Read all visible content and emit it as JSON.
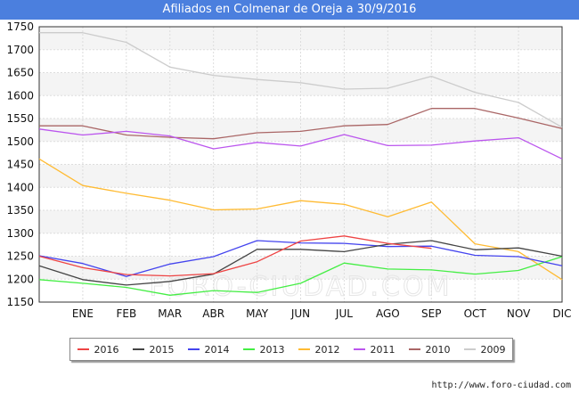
{
  "title": "Afiliados en Colmenar de Oreja a 30/9/2016",
  "source": "http://www.foro-ciudad.com",
  "watermark": "FORO-CIUDAD.COM",
  "chart_data": {
    "type": "line",
    "title": "Afiliados en Colmenar de Oreja a 30/9/2016",
    "categories": [
      "",
      "ENE",
      "FEB",
      "MAR",
      "ABR",
      "MAY",
      "JUN",
      "JUL",
      "AGO",
      "SEP",
      "OCT",
      "NOV",
      "DIC"
    ],
    "y_ticks": [
      1150,
      1200,
      1250,
      1300,
      1350,
      1400,
      1450,
      1500,
      1550,
      1600,
      1650,
      1700,
      1750
    ],
    "ylim": [
      1150,
      1750
    ],
    "grid": "horizontal",
    "legend_position": "bottom",
    "series": [
      {
        "name": "2016",
        "color": "#ee4444",
        "values": [
          1250,
          1225,
          1210,
          1207,
          1212,
          1238,
          1283,
          1294,
          1278,
          1267,
          null,
          null,
          null
        ]
      },
      {
        "name": "2015",
        "color": "#444444",
        "values": [
          1229,
          1199,
          1187,
          1195,
          1211,
          1265,
          1265,
          1260,
          1276,
          1284,
          1264,
          1268,
          1250
        ]
      },
      {
        "name": "2014",
        "color": "#4444ee",
        "values": [
          1251,
          1234,
          1206,
          1233,
          1249,
          1284,
          1279,
          1278,
          1271,
          1272,
          1252,
          1249,
          1229
        ]
      },
      {
        "name": "2013",
        "color": "#44ee44",
        "values": [
          1199,
          1191,
          1182,
          1165,
          1175,
          1171,
          1191,
          1235,
          1222,
          1220,
          1211,
          1219,
          1249
        ]
      },
      {
        "name": "2012",
        "color": "#ffbb33",
        "values": [
          1462,
          1404,
          1387,
          1372,
          1351,
          1353,
          1371,
          1363,
          1336,
          1368,
          1277,
          1260,
          1199
        ]
      },
      {
        "name": "2011",
        "color": "#bb55ee",
        "values": [
          1527,
          1514,
          1522,
          1512,
          1484,
          1498,
          1490,
          1515,
          1491,
          1492,
          1501,
          1508,
          1462
        ]
      },
      {
        "name": "2010",
        "color": "#aa6666",
        "values": [
          1534,
          1534,
          1514,
          1509,
          1506,
          1519,
          1522,
          1534,
          1537,
          1572,
          1572,
          1551,
          1528
        ]
      },
      {
        "name": "2009",
        "color": "#cccccc",
        "values": [
          1737,
          1737,
          1716,
          1662,
          1644,
          1635,
          1628,
          1614,
          1616,
          1642,
          1607,
          1585,
          1531
        ]
      }
    ]
  }
}
